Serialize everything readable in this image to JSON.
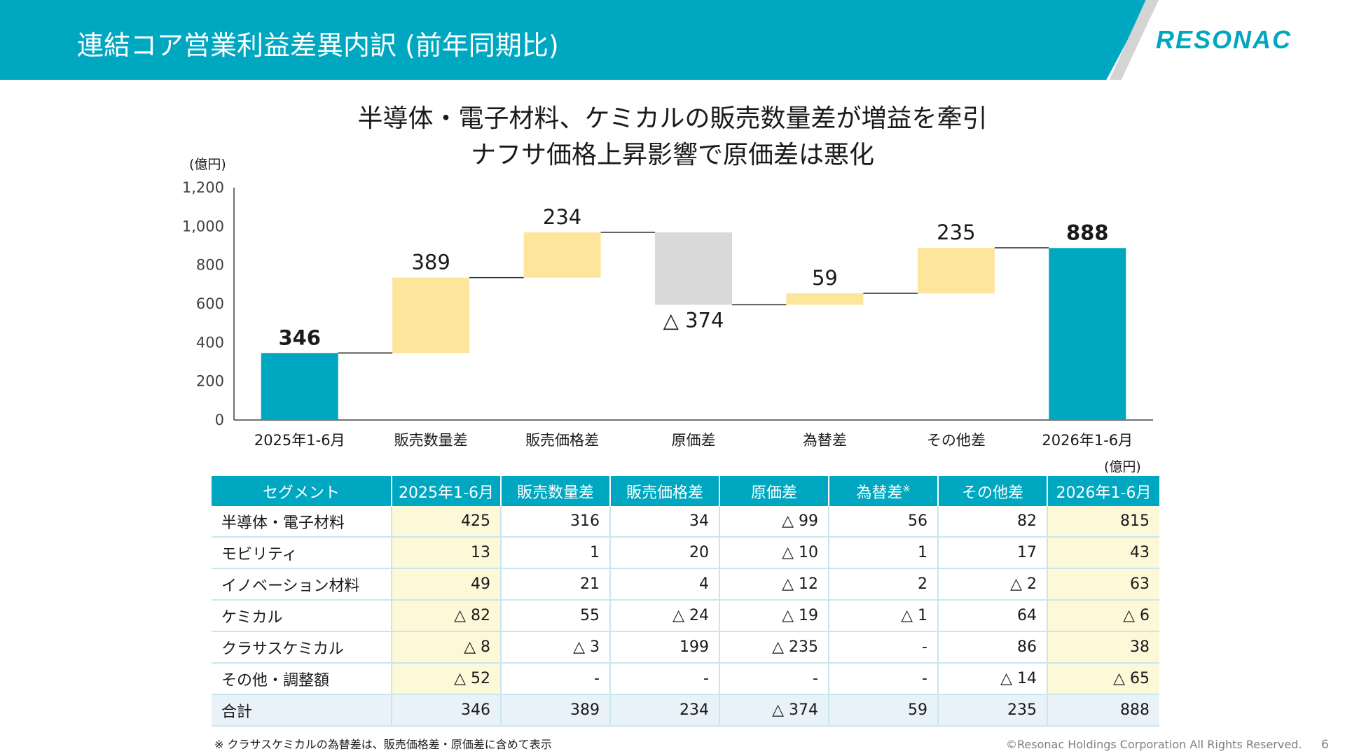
{
  "header": {
    "title": "連結コア営業利益差異内訳 (前年同期比)",
    "logo_text": "RESONAC",
    "accent_color": "#00a7c1"
  },
  "headline": {
    "line1": "半導体・電子材料、ケミカルの販売数量差が増益を牽引",
    "line2": "ナフサ価格上昇影響で原価差は悪化"
  },
  "chart_data": {
    "type": "waterfall",
    "unit": "(億円)",
    "ylim": [
      0,
      1200
    ],
    "yticks": [
      "0",
      "200",
      "400",
      "600",
      "800",
      "1,000",
      "1,200"
    ],
    "grid": false,
    "categories": [
      "2025年1-6月",
      "販売数量差",
      "販売価格差",
      "原価差",
      "為替差",
      "その他差",
      "2026年1-6月"
    ],
    "values": [
      346,
      389,
      234,
      -374,
      59,
      235,
      888
    ],
    "kinds": [
      "total",
      "delta",
      "delta",
      "delta",
      "delta",
      "delta",
      "total"
    ],
    "labels": [
      "346",
      "389",
      "234",
      "△ 374",
      "59",
      "235",
      "888"
    ],
    "colors": {
      "total": "#00a7c1",
      "increase": "#fde59b",
      "decrease": "#d9d9d9"
    }
  },
  "table": {
    "unit": "(億円)",
    "headers": [
      "セグメント",
      "2025年1-6月",
      "販売数量差",
      "販売価格差",
      "原価差",
      "為替差",
      "その他差",
      "2026年1-6月"
    ],
    "header_note": "※",
    "rows": [
      [
        "半導体・電子材料",
        "425",
        "316",
        "34",
        "△ 99",
        "56",
        "82",
        "815"
      ],
      [
        "モビリティ",
        "13",
        "1",
        "20",
        "△ 10",
        "1",
        "17",
        "43"
      ],
      [
        "イノベーション材料",
        "49",
        "21",
        "4",
        "△ 12",
        "2",
        "△ 2",
        "63"
      ],
      [
        "ケミカル",
        "△ 82",
        "55",
        "△ 24",
        "△ 19",
        "△ 1",
        "64",
        "△ 6"
      ],
      [
        "クラサスケミカル",
        "△ 8",
        "△ 3",
        "199",
        "△ 235",
        "-",
        "86",
        "38"
      ],
      [
        "その他・調整額",
        "△ 52",
        "-",
        "-",
        "-",
        "-",
        "△ 14",
        "△ 65"
      ],
      [
        "合計",
        "346",
        "389",
        "234",
        "△ 374",
        "59",
        "235",
        "888"
      ]
    ]
  },
  "footer": {
    "note": "※ クラサスケミカルの為替差は、販売価格差・原価差に含めて表示",
    "copyright": "©Resonac Holdings Corporation  All Rights Reserved.",
    "page": "6"
  }
}
